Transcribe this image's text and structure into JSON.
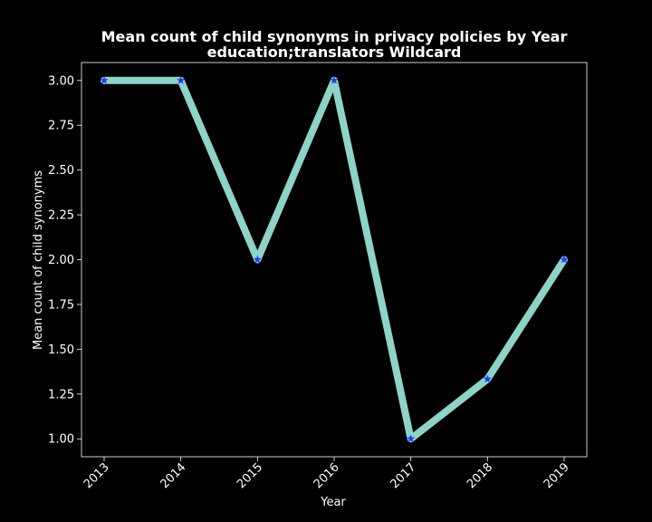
{
  "chart_data": {
    "type": "line",
    "title_line1": "Mean count of child synonyms in privacy policies by Year",
    "title_line2": "education;translators Wildcard",
    "xlabel": "Year",
    "ylabel": "Mean count of child synonyms",
    "x": [
      "2013",
      "2014",
      "2015",
      "2016",
      "2017",
      "2018",
      "2019"
    ],
    "series": [
      {
        "values": [
          3.0,
          3.0,
          2.0,
          3.0,
          1.0,
          1.3333,
          2.0
        ]
      }
    ],
    "yticks": [
      "1.00",
      "1.25",
      "1.50",
      "1.75",
      "2.00",
      "2.25",
      "2.50",
      "2.75",
      "3.00"
    ],
    "ylim": [
      0.9,
      3.1
    ],
    "grid": false,
    "line_color": "#8dd3c7",
    "marker_color": "#1f3dff",
    "background": "#000000",
    "text_color": "#ffffff"
  }
}
